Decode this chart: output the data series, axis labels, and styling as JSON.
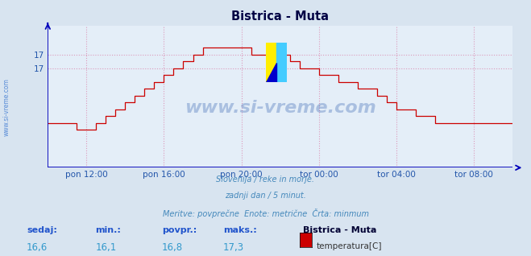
{
  "title": "Bistrica - Muta",
  "bg_color": "#d8e4f0",
  "plot_bg_color": "#e4eef8",
  "line_color": "#cc0000",
  "axis_color": "#0000bb",
  "grid_color": "#dd99bb",
  "xlabel_ticks": [
    "pon 12:00",
    "pon 16:00",
    "pon 20:00",
    "tor 00:00",
    "tor 04:00",
    "tor 08:00"
  ],
  "tick_positions": [
    2,
    6,
    10,
    14,
    18,
    22
  ],
  "ytick_vals": [
    17.0,
    17.2
  ],
  "ytick_labels": [
    "17",
    "17"
  ],
  "ylim_min": 15.55,
  "ylim_max": 17.62,
  "xlim_min": 0,
  "xlim_max": 24,
  "subtitle_lines": [
    "Slovenija / reke in morje.",
    "zadnji dan / 5 minut.",
    "Meritve: povprečne  Enote: metrične  Črta: minmum"
  ],
  "footer_labels": [
    "sedaj:",
    "min.:",
    "povpr.:",
    "maks.:"
  ],
  "footer_values": [
    "16,6",
    "16,1",
    "16,8",
    "17,3"
  ],
  "footer_series": "Bistrica - Muta",
  "footer_series_label": "temperatura[C]",
  "footer_series_color": "#cc0000",
  "watermark_text": "www.si-vreme.com",
  "watermark_color": "#2255aa",
  "watermark_alpha": 0.3,
  "side_text": "www.si-vreme.com",
  "side_text_color": "#2266cc"
}
